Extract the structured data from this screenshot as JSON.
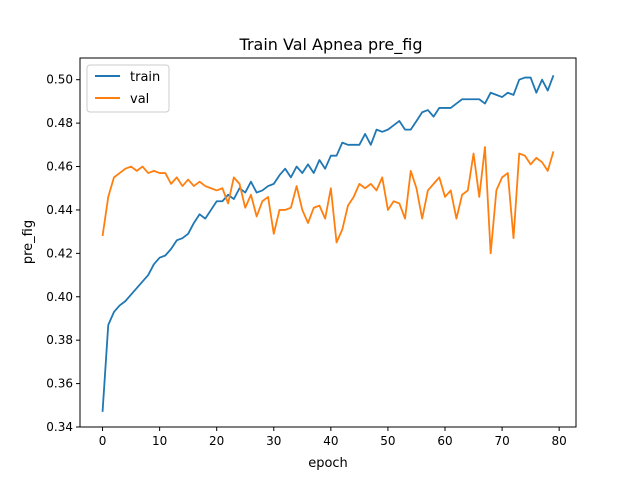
{
  "chart_data": {
    "type": "line",
    "title": "Train Val Apnea pre_fig",
    "xlabel": "epoch",
    "ylabel": "pre_fig",
    "xlim": [
      -3.95,
      82.95
    ],
    "ylim": [
      0.34,
      0.51
    ],
    "xticks": [
      0,
      10,
      20,
      30,
      40,
      50,
      60,
      70,
      80
    ],
    "yticks": [
      0.34,
      0.36,
      0.38,
      0.4,
      0.42,
      0.44,
      0.46,
      0.48,
      0.5
    ],
    "ytick_labels": [
      "0.34",
      "0.36",
      "0.38",
      "0.40",
      "0.42",
      "0.44",
      "0.46",
      "0.48",
      "0.50"
    ],
    "grid": false,
    "legend_position": "top-left",
    "series": [
      {
        "name": "train",
        "color": "#1f77b4",
        "x": [
          0,
          1,
          2,
          3,
          4,
          5,
          6,
          7,
          8,
          9,
          10,
          11,
          12,
          13,
          14,
          15,
          16,
          17,
          18,
          19,
          20,
          21,
          22,
          23,
          24,
          25,
          26,
          27,
          28,
          29,
          30,
          31,
          32,
          33,
          34,
          35,
          36,
          37,
          38,
          39,
          40,
          41,
          42,
          43,
          44,
          45,
          46,
          47,
          48,
          49,
          50,
          51,
          52,
          53,
          54,
          55,
          56,
          57,
          58,
          59,
          60,
          61,
          62,
          63,
          64,
          65,
          66,
          67,
          68,
          69,
          70,
          71,
          72,
          73,
          74,
          75,
          76,
          77,
          78,
          79
        ],
        "values": [
          0.347,
          0.387,
          0.393,
          0.396,
          0.398,
          0.401,
          0.404,
          0.407,
          0.41,
          0.415,
          0.418,
          0.419,
          0.422,
          0.426,
          0.427,
          0.429,
          0.434,
          0.438,
          0.436,
          0.44,
          0.444,
          0.444,
          0.447,
          0.445,
          0.45,
          0.448,
          0.453,
          0.448,
          0.449,
          0.451,
          0.452,
          0.456,
          0.459,
          0.455,
          0.46,
          0.457,
          0.461,
          0.457,
          0.463,
          0.459,
          0.465,
          0.465,
          0.471,
          0.47,
          0.47,
          0.47,
          0.475,
          0.47,
          0.477,
          0.476,
          0.477,
          0.479,
          0.481,
          0.477,
          0.477,
          0.481,
          0.485,
          0.486,
          0.483,
          0.487,
          0.487,
          0.487,
          0.489,
          0.491,
          0.491,
          0.491,
          0.491,
          0.489,
          0.494,
          0.493,
          0.492,
          0.494,
          0.493,
          0.5,
          0.501,
          0.501,
          0.494,
          0.5,
          0.495,
          0.502
        ]
      },
      {
        "name": "val",
        "color": "#ff7f0e",
        "x": [
          0,
          1,
          2,
          3,
          4,
          5,
          6,
          7,
          8,
          9,
          10,
          11,
          12,
          13,
          14,
          15,
          16,
          17,
          18,
          19,
          20,
          21,
          22,
          23,
          24,
          25,
          26,
          27,
          28,
          29,
          30,
          31,
          32,
          33,
          34,
          35,
          36,
          37,
          38,
          39,
          40,
          41,
          42,
          43,
          44,
          45,
          46,
          47,
          48,
          49,
          50,
          51,
          52,
          53,
          54,
          55,
          56,
          57,
          58,
          59,
          60,
          61,
          62,
          63,
          64,
          65,
          66,
          67,
          68,
          69,
          70,
          71,
          72,
          73,
          74,
          75,
          76,
          77,
          78,
          79
        ],
        "values": [
          0.428,
          0.446,
          0.455,
          0.457,
          0.459,
          0.46,
          0.458,
          0.46,
          0.457,
          0.458,
          0.457,
          0.457,
          0.452,
          0.455,
          0.451,
          0.454,
          0.451,
          0.453,
          0.451,
          0.45,
          0.449,
          0.45,
          0.443,
          0.455,
          0.452,
          0.441,
          0.447,
          0.437,
          0.444,
          0.446,
          0.429,
          0.44,
          0.44,
          0.441,
          0.451,
          0.44,
          0.434,
          0.441,
          0.442,
          0.436,
          0.45,
          0.425,
          0.431,
          0.442,
          0.446,
          0.452,
          0.45,
          0.452,
          0.449,
          0.455,
          0.44,
          0.444,
          0.443,
          0.436,
          0.458,
          0.45,
          0.436,
          0.449,
          0.452,
          0.455,
          0.446,
          0.449,
          0.436,
          0.447,
          0.449,
          0.466,
          0.446,
          0.469,
          0.42,
          0.449,
          0.455,
          0.457,
          0.427,
          0.466,
          0.465,
          0.461,
          0.464,
          0.462,
          0.458,
          0.467
        ]
      }
    ]
  }
}
